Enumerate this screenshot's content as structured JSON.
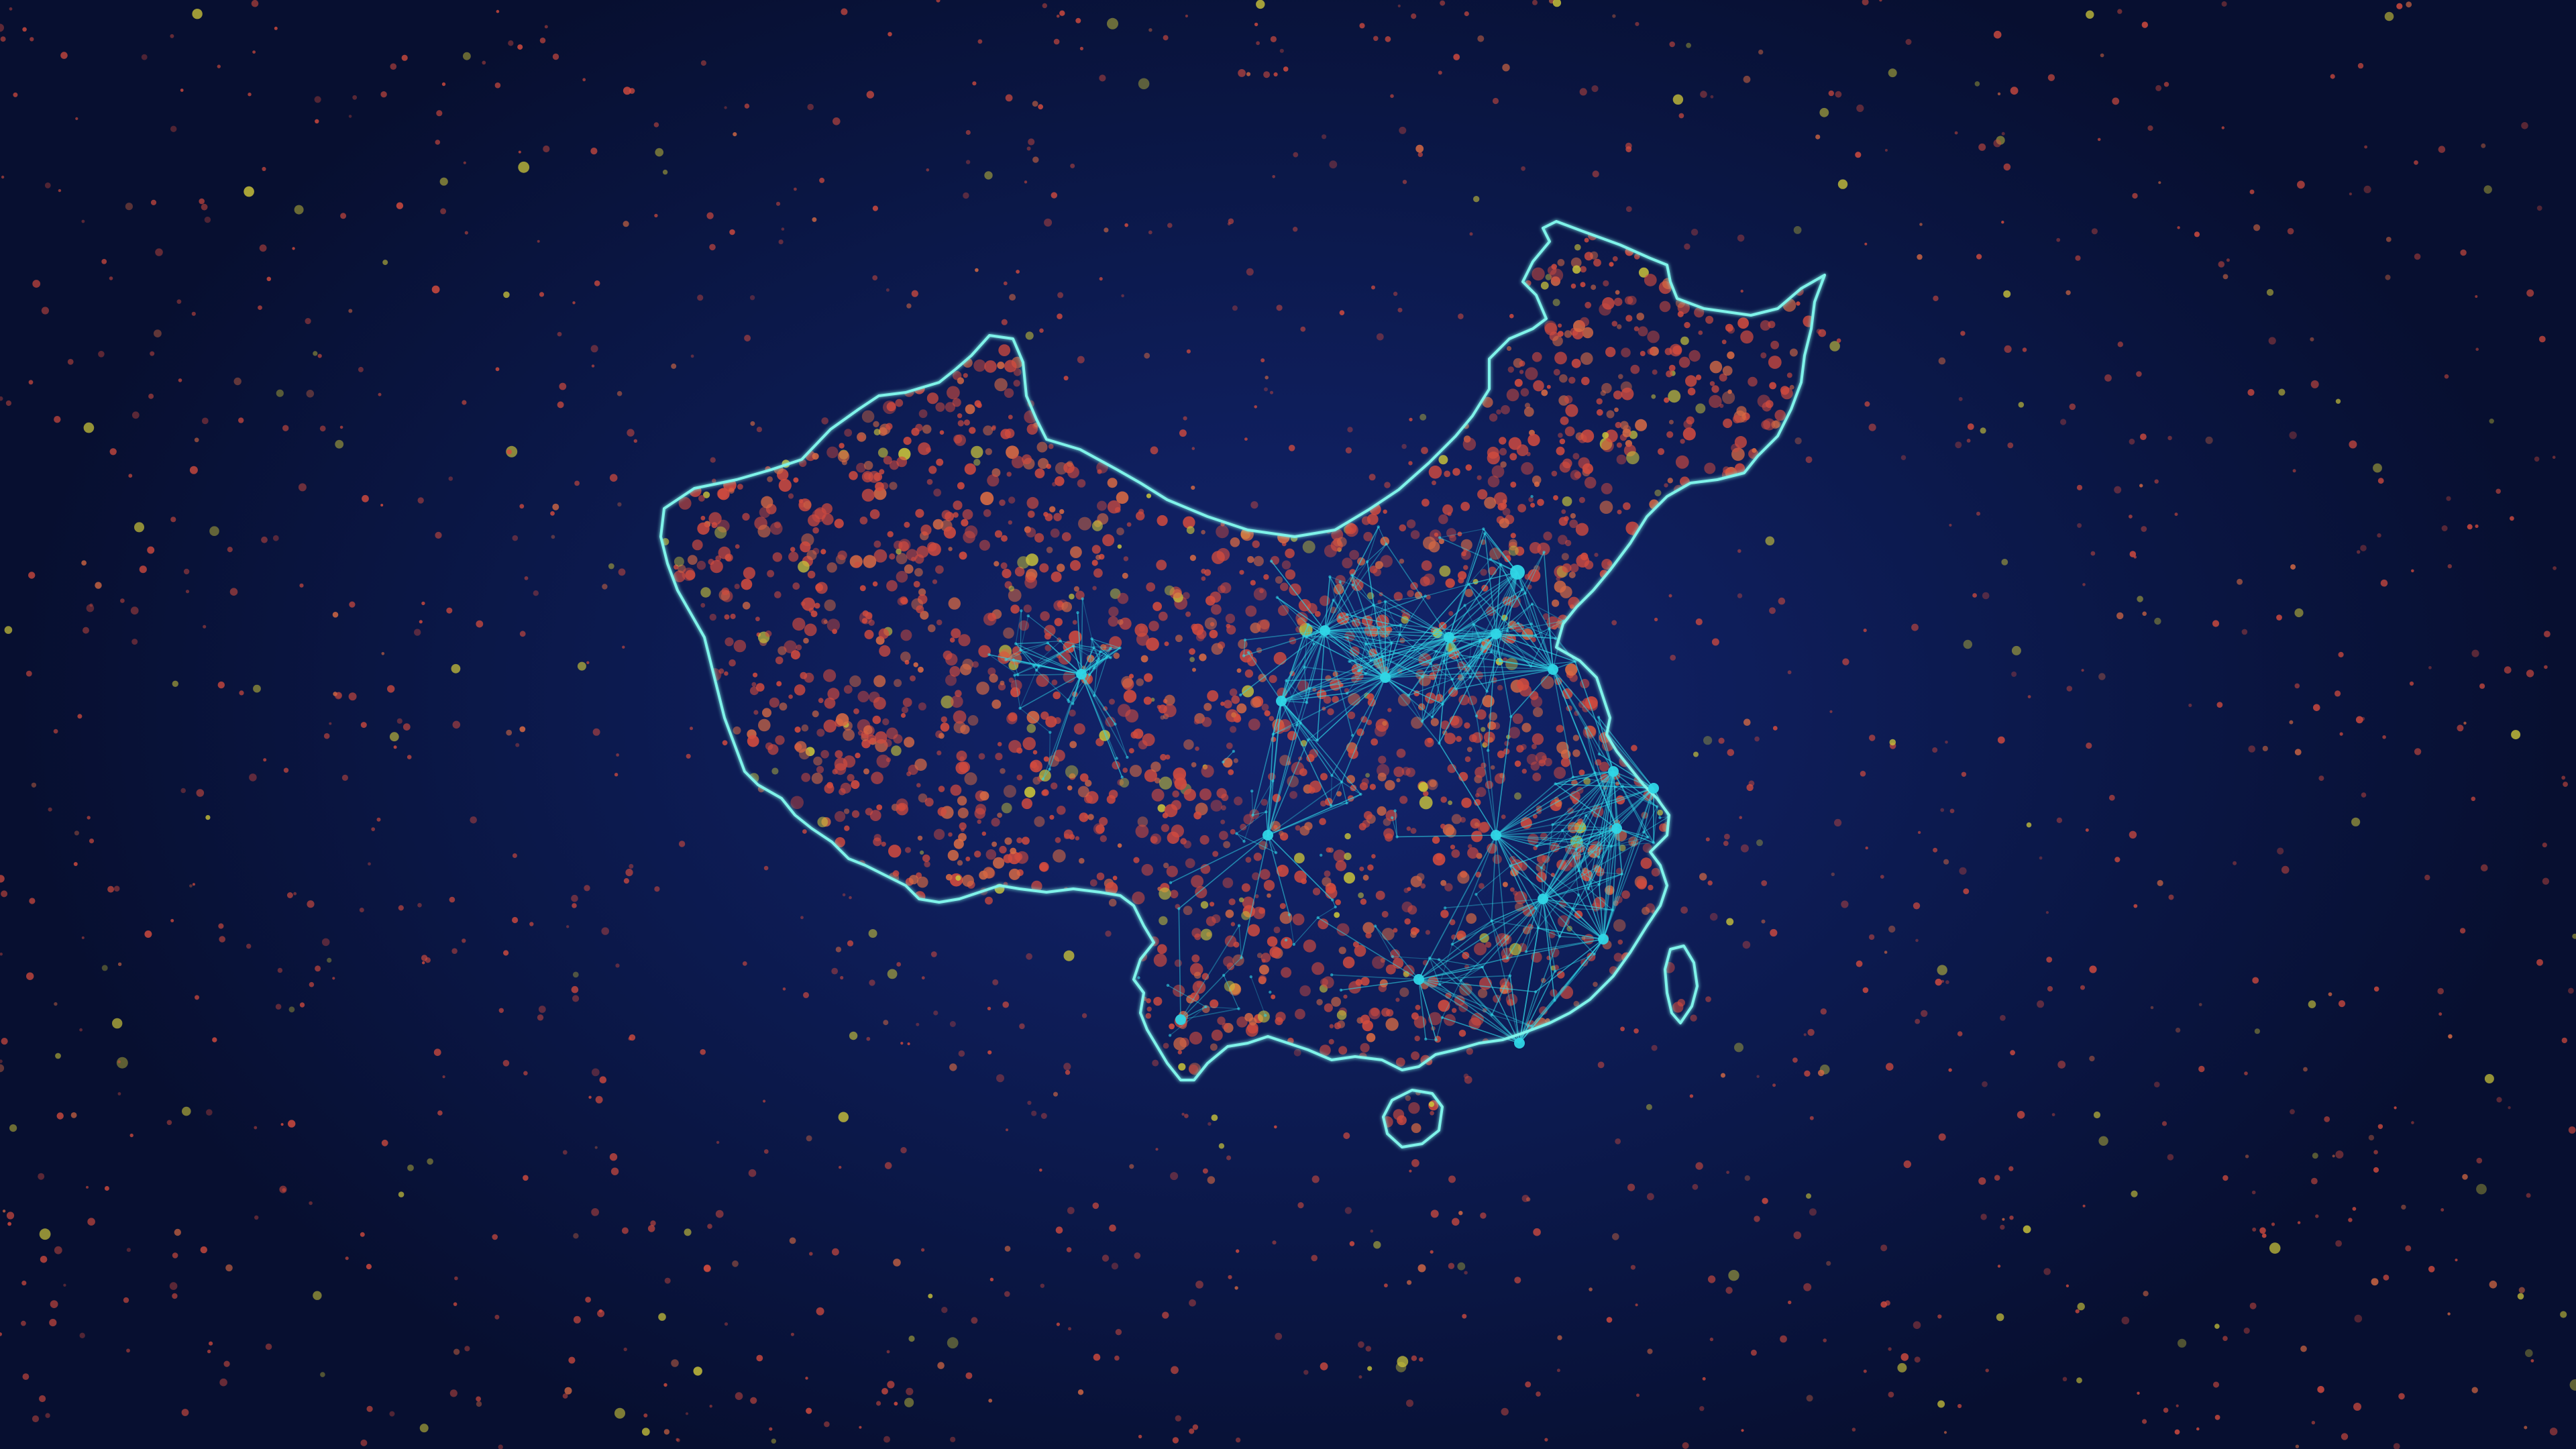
{
  "scene": {
    "subject": "china-map-particle-network",
    "colors": {
      "background_center": "#13246e",
      "background_edge": "#070f30",
      "particle_red": "#d24b3e",
      "particle_orange": "#d86a43",
      "particle_yellow": "#c9c23a",
      "network_cyan": "#2fd6e6",
      "outline_cyan": "#7ff3ea"
    }
  }
}
